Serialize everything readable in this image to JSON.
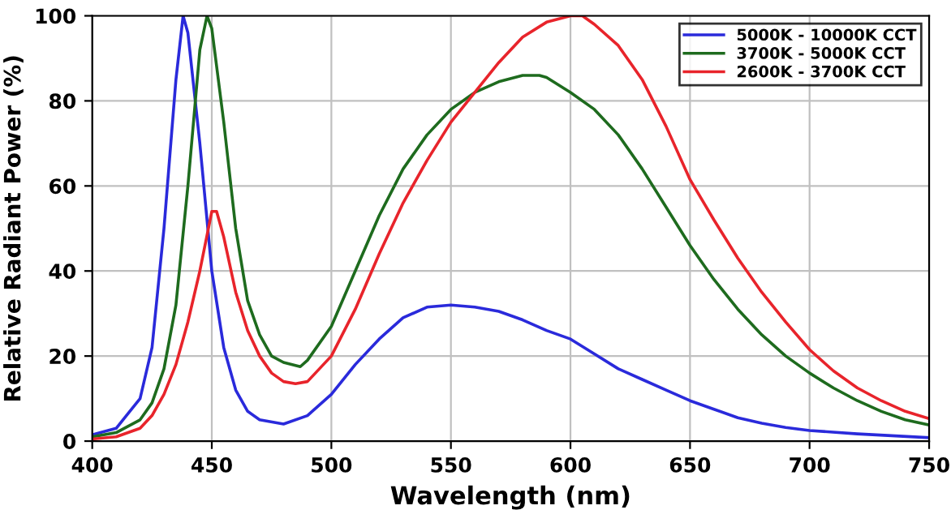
{
  "chart_data": {
    "type": "line",
    "xlabel": "Wavelength (nm)",
    "ylabel": "Relative Radiant Power (%)",
    "xlim": [
      400,
      750
    ],
    "xticks": [
      400,
      450,
      500,
      550,
      600,
      650,
      700,
      750
    ],
    "ylim": [
      0,
      100
    ],
    "yticks": [
      0,
      20,
      40,
      60,
      80,
      100
    ],
    "grid": true,
    "legend": "top right",
    "marker": "none",
    "line_style": "solid",
    "series": [
      {
        "name": "5000K - 10000K CCT",
        "color": "#2a2adb",
        "x": [
          400,
          410,
          420,
          425,
          430,
          435,
          438,
          440,
          445,
          450,
          455,
          460,
          465,
          470,
          480,
          490,
          500,
          510,
          520,
          530,
          540,
          550,
          560,
          570,
          580,
          590,
          600,
          610,
          620,
          630,
          640,
          650,
          660,
          670,
          680,
          690,
          700,
          720,
          750
        ],
        "values": [
          1.5,
          3,
          10,
          22,
          50,
          85,
          100,
          96,
          70,
          40,
          22,
          12,
          7,
          5,
          4,
          6,
          11,
          18,
          24,
          29,
          31.5,
          32,
          31.5,
          30.5,
          28.5,
          26,
          24,
          20.5,
          17,
          14.5,
          12,
          9.5,
          7.5,
          5.5,
          4.2,
          3.2,
          2.5,
          1.7,
          0.8
        ]
      },
      {
        "name": "3700K - 5000K CCT",
        "color": "#1e6b1e",
        "x": [
          400,
          410,
          420,
          425,
          430,
          435,
          440,
          445,
          448,
          450,
          455,
          460,
          465,
          470,
          475,
          480,
          487,
          490,
          500,
          510,
          520,
          530,
          540,
          550,
          560,
          570,
          580,
          587,
          590,
          600,
          610,
          620,
          630,
          640,
          650,
          660,
          670,
          680,
          690,
          700,
          710,
          720,
          730,
          740,
          750
        ],
        "values": [
          1,
          2,
          5,
          9,
          17,
          32,
          60,
          92,
          100,
          97,
          75,
          50,
          33,
          25,
          20,
          18.5,
          17.5,
          19,
          27,
          40,
          53,
          64,
          72,
          78,
          82,
          84.5,
          86,
          86,
          85.5,
          82,
          78,
          72,
          64,
          55,
          46,
          38,
          31,
          25,
          20,
          16,
          12.5,
          9.5,
          7,
          5,
          3.8
        ]
      },
      {
        "name": "2600K - 3700K CCT",
        "color": "#e8242b",
        "x": [
          400,
          410,
          420,
          425,
          430,
          435,
          440,
          445,
          450,
          452,
          455,
          460,
          465,
          470,
          475,
          480,
          485,
          490,
          500,
          510,
          520,
          530,
          540,
          550,
          560,
          570,
          580,
          590,
          600,
          605,
          610,
          620,
          630,
          640,
          650,
          660,
          670,
          680,
          690,
          700,
          710,
          720,
          730,
          740,
          750
        ],
        "values": [
          0.5,
          1,
          3,
          6,
          11,
          18,
          28,
          40,
          54,
          54,
          48,
          35,
          26,
          20,
          16,
          14,
          13.5,
          14,
          20,
          31,
          44,
          56,
          66,
          75,
          82,
          89,
          95,
          98.5,
          100,
          100,
          98,
          93,
          85,
          74,
          61.5,
          52,
          43,
          35,
          28,
          21.5,
          16.5,
          12.5,
          9.5,
          7,
          5.3
        ]
      }
    ]
  }
}
